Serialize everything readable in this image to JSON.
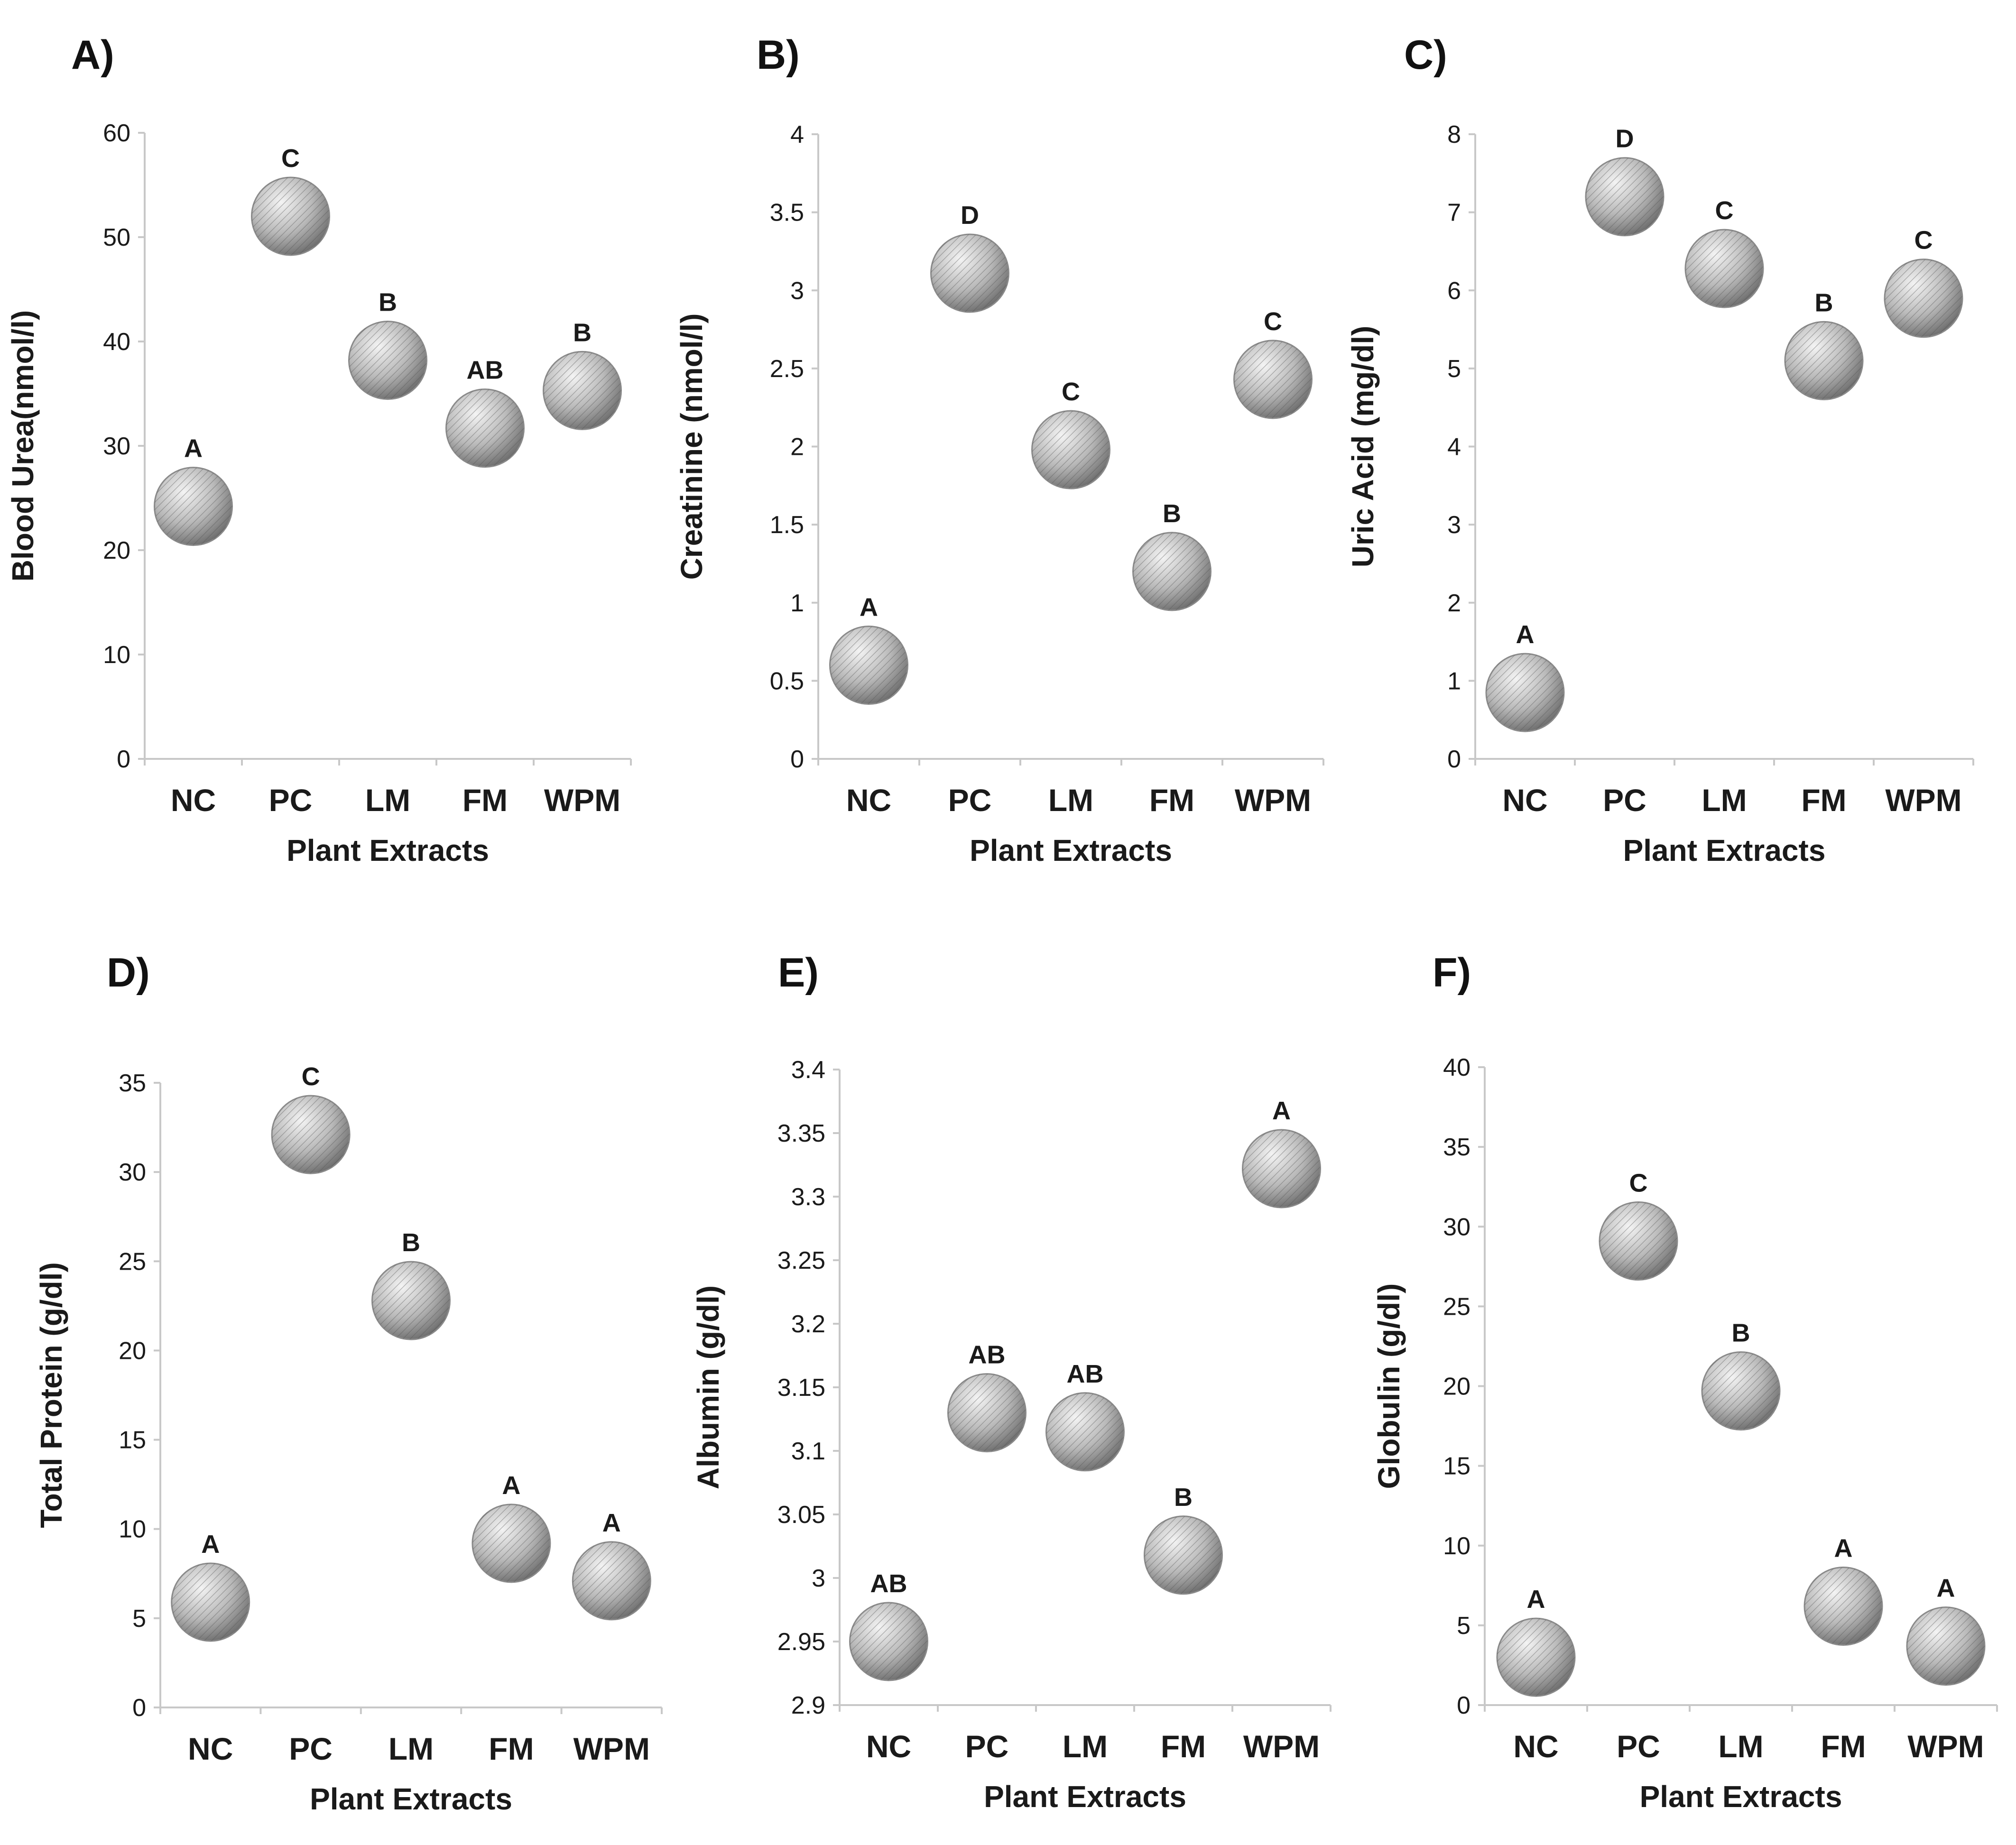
{
  "figure": {
    "colors": {
      "bubble_light": "#f4f4f4",
      "bubble_mid": "#b9b9b9",
      "bubble_dark": "#6b6b6b",
      "hatch": "#555555",
      "axis": "#c8c8c8",
      "text": "#1a1a1a"
    }
  },
  "chart_data": [
    {
      "panel": "A)",
      "type": "scatter",
      "title": "",
      "xlabel": "Plant Extracts",
      "ylabel": "Blood Urea(nmol/l)",
      "categories": [
        "NC",
        "PC",
        "LM",
        "FM",
        "WPM"
      ],
      "values": [
        24.2,
        52.0,
        38.2,
        31.7,
        35.3
      ],
      "letters": [
        "A",
        "C",
        "B",
        "AB",
        "B"
      ],
      "yticks": [
        "0",
        "10",
        "20",
        "30",
        "40",
        "50",
        "60"
      ],
      "ylim": [
        0,
        60
      ]
    },
    {
      "panel": "B)",
      "type": "scatter",
      "title": "",
      "xlabel": "Plant Extracts",
      "ylabel": "Creatinine (nmol/l)",
      "categories": [
        "NC",
        "PC",
        "LM",
        "FM",
        "WPM"
      ],
      "values": [
        0.6,
        3.11,
        1.98,
        1.2,
        2.43
      ],
      "letters": [
        "A",
        "D",
        "C",
        "B",
        "C"
      ],
      "yticks": [
        "0",
        "0.5",
        "1",
        "1.5",
        "2",
        "2.5",
        "3",
        "3.5",
        "4"
      ],
      "ylim": [
        0,
        4
      ]
    },
    {
      "panel": "C)",
      "type": "scatter",
      "title": "",
      "xlabel": "Plant Extracts",
      "ylabel": "Uric Acid (mg/dl)",
      "categories": [
        "NC",
        "PC",
        "LM",
        "FM",
        "WPM"
      ],
      "values": [
        0.85,
        7.2,
        6.28,
        5.1,
        5.9
      ],
      "letters": [
        "A",
        "D",
        "C",
        "B",
        "C"
      ],
      "yticks": [
        "0",
        "1",
        "2",
        "3",
        "4",
        "5",
        "6",
        "7",
        "8"
      ],
      "ylim": [
        0,
        8
      ]
    },
    {
      "panel": "D)",
      "type": "scatter",
      "title": "",
      "xlabel": "Plant Extracts",
      "ylabel": "Total Protein (g/dl)",
      "categories": [
        "NC",
        "PC",
        "LM",
        "FM",
        "WPM"
      ],
      "values": [
        5.9,
        32.1,
        22.8,
        9.2,
        7.1
      ],
      "letters": [
        "A",
        "C",
        "B",
        "A",
        "A"
      ],
      "yticks": [
        "0",
        "5",
        "10",
        "15",
        "20",
        "25",
        "30",
        "35"
      ],
      "ylim": [
        0,
        35
      ]
    },
    {
      "panel": "E)",
      "type": "scatter",
      "title": "",
      "xlabel": "Plant Extracts",
      "ylabel": "Albumin (g/dl)",
      "categories": [
        "NC",
        "PC",
        "LM",
        "FM",
        "WPM"
      ],
      "values": [
        2.95,
        3.13,
        3.115,
        3.018,
        3.322
      ],
      "letters": [
        "AB",
        "AB",
        "AB",
        "B",
        "A"
      ],
      "yticks": [
        "2.9",
        "2.95",
        "3",
        "3.05",
        "3.1",
        "3.15",
        "3.2",
        "3.25",
        "3.3",
        "3.35",
        "3.4"
      ],
      "ylim": [
        2.9,
        3.4
      ]
    },
    {
      "panel": "F)",
      "type": "scatter",
      "title": "",
      "xlabel": "Plant Extracts",
      "ylabel": "Globulin (g/dl)",
      "categories": [
        "NC",
        "PC",
        "LM",
        "FM",
        "WPM"
      ],
      "values": [
        3.0,
        29.1,
        19.7,
        6.2,
        3.7
      ],
      "letters": [
        "A",
        "C",
        "B",
        "A",
        "A"
      ],
      "yticks": [
        "0",
        "5",
        "10",
        "15",
        "20",
        "25",
        "30",
        "35",
        "40"
      ],
      "ylim": [
        0,
        40
      ]
    }
  ]
}
